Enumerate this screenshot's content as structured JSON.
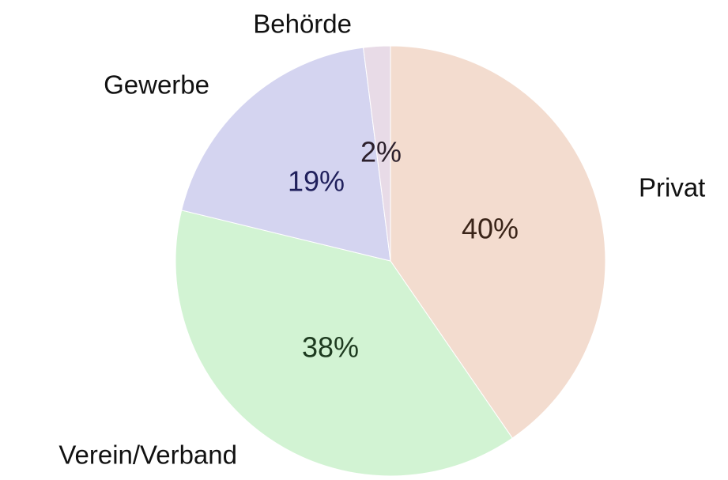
{
  "chart_data": {
    "type": "pie",
    "categories": [
      "Privat",
      "Verein/Verband",
      "Gewerbe",
      "Behörde"
    ],
    "values": [
      40,
      38,
      19,
      2
    ],
    "value_labels": [
      "40%",
      "38%",
      "19%",
      "2%"
    ],
    "colors": [
      "#f3dccf",
      "#d2f3d3",
      "#d4d4f0",
      "#e8dbe7"
    ],
    "label_colors": [
      "#3a2418",
      "#1d3a1f",
      "#20205c",
      "#2c202c"
    ]
  }
}
